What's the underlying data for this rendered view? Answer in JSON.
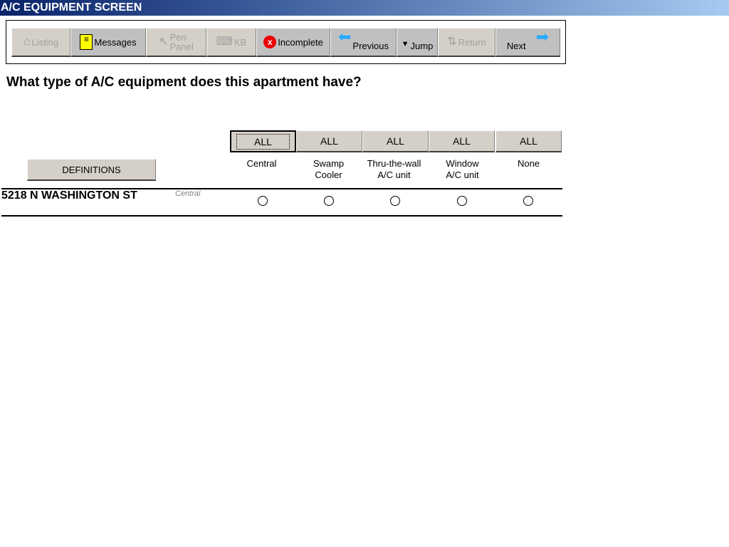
{
  "title": "A/C EQUIPMENT SCREEN",
  "toolbar": {
    "listing": "Listing",
    "messages": "Messages",
    "pen_line1": "Pen",
    "pen_line2": "Panel",
    "kb": "KB",
    "incomplete": "Incomplete",
    "previous": "Previous",
    "jump": "Jump",
    "return": "Return",
    "next": "Next"
  },
  "question": "What type of A/C equipment does this apartment have?",
  "definitions": "DEFINITIONS",
  "columns": [
    {
      "all": "ALL",
      "line1": "Central",
      "line2": ""
    },
    {
      "all": "ALL",
      "line1": "Swamp",
      "line2": "Cooler"
    },
    {
      "all": "ALL",
      "line1": "Thru-the-wall",
      "line2": "A/C unit"
    },
    {
      "all": "ALL",
      "line1": "Window",
      "line2": "A/C unit"
    },
    {
      "all": "ALL",
      "line1": "None",
      "line2": ""
    }
  ],
  "rows": [
    {
      "address": "5218 N WASHINGTON ST",
      "previous_answer": "Central",
      "selected": null
    }
  ]
}
